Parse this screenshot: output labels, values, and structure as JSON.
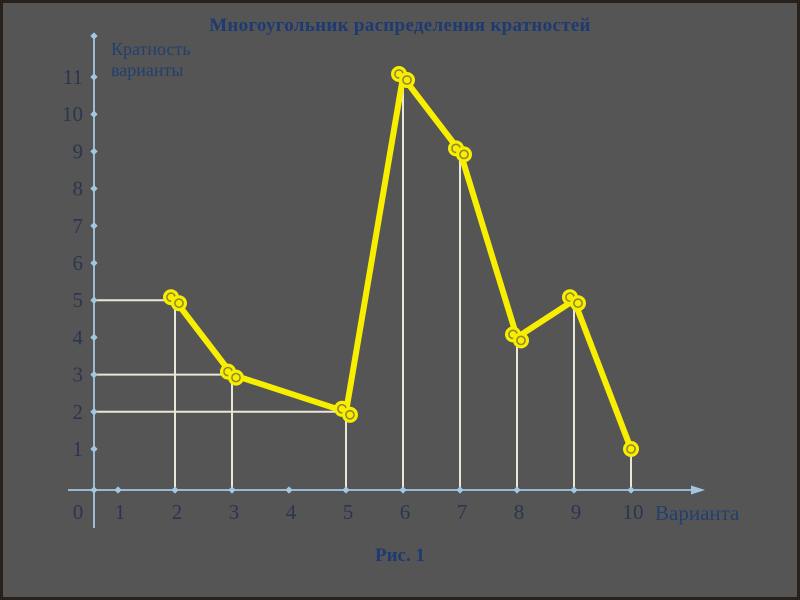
{
  "slide": {
    "title": "Многоугольник распределения кратностей",
    "caption": "Рис. 1"
  },
  "chart_data": {
    "type": "line",
    "title": "Многоугольник распределения кратностей",
    "xlabel": "Варианта",
    "ylabel": "Кратность варианты",
    "x": [
      2,
      3,
      5,
      6,
      7,
      8,
      9,
      10
    ],
    "y": [
      5,
      3,
      2,
      11,
      9,
      4,
      5,
      1
    ],
    "x_ticks": [
      0,
      1,
      2,
      3,
      4,
      5,
      6,
      7,
      8,
      9,
      10
    ],
    "y_ticks": [
      1,
      2,
      3,
      4,
      5,
      6,
      7,
      8,
      9,
      10,
      11
    ],
    "xlim": [
      0,
      11
    ],
    "ylim": [
      0,
      12
    ],
    "grid": false,
    "legend": false,
    "marker": "yellow-ring-doubled",
    "double_marker_points": [
      2,
      3,
      5,
      6,
      7,
      8,
      9
    ],
    "droplines_at_x": [
      2,
      3,
      5,
      6,
      7,
      8,
      9,
      10
    ],
    "ref_lines": [
      {
        "y": 5,
        "to_x": 2
      },
      {
        "y": 3,
        "to_x": 3
      },
      {
        "y": 2,
        "to_x": 5
      }
    ],
    "colors": {
      "line": "#f8ef00",
      "marker_fill": "#f8ef00",
      "marker_ring": "#948a2c",
      "axis": "#a4c7e1",
      "guide": "#eae7d8",
      "tick_text": "#2c3550",
      "label_text": "#21406e"
    }
  }
}
